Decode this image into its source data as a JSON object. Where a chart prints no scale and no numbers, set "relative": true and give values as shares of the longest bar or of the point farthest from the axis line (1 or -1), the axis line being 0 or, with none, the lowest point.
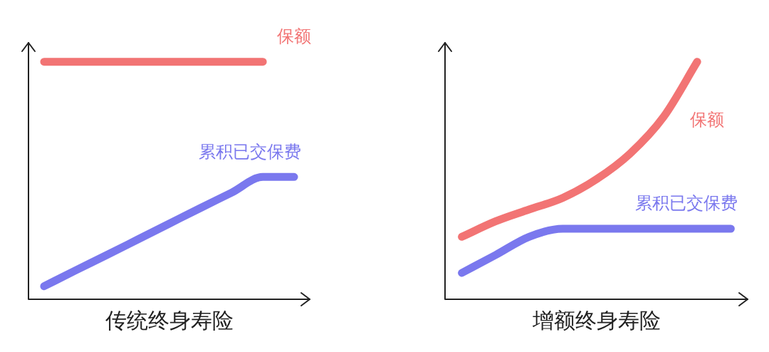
{
  "chart_data": [
    {
      "type": "line",
      "xlabel": "传统终身寿险",
      "relative": true,
      "grid": false,
      "legend": false,
      "tick_labels": false,
      "marker": "none",
      "line_style": "solid",
      "categories": [
        null,
        null,
        null,
        null,
        null,
        null,
        null,
        null,
        null
      ],
      "series": [
        {
          "name": "保额",
          "color": "#f27474",
          "values": [
            1,
            1,
            1,
            1,
            1,
            1,
            1,
            1,
            null
          ]
        },
        {
          "name": "累积已交保费",
          "color": "#7a78ee",
          "values": [
            0.055,
            0.121,
            0.186,
            0.252,
            0.318,
            0.384,
            0.449,
            0.515,
            0.515
          ]
        }
      ]
    },
    {
      "type": "line",
      "xlabel": "增额终身寿险",
      "relative": true,
      "grid": false,
      "legend": false,
      "tick_labels": false,
      "marker": "none",
      "line_style": "solid",
      "categories": [
        null,
        null,
        null,
        null,
        null,
        null,
        null,
        null,
        null
      ],
      "series": [
        {
          "name": "保额",
          "color": "#f27474",
          "values": [
            0.263,
            0.328,
            0.378,
            0.427,
            0.505,
            0.613,
            0.768,
            1.0,
            null
          ]
        },
        {
          "name": "累积已交保费",
          "color": "#7a78ee",
          "values": [
            0.111,
            0.186,
            0.263,
            0.297,
            0.297,
            0.297,
            0.297,
            0.297,
            0.297
          ]
        }
      ]
    }
  ]
}
